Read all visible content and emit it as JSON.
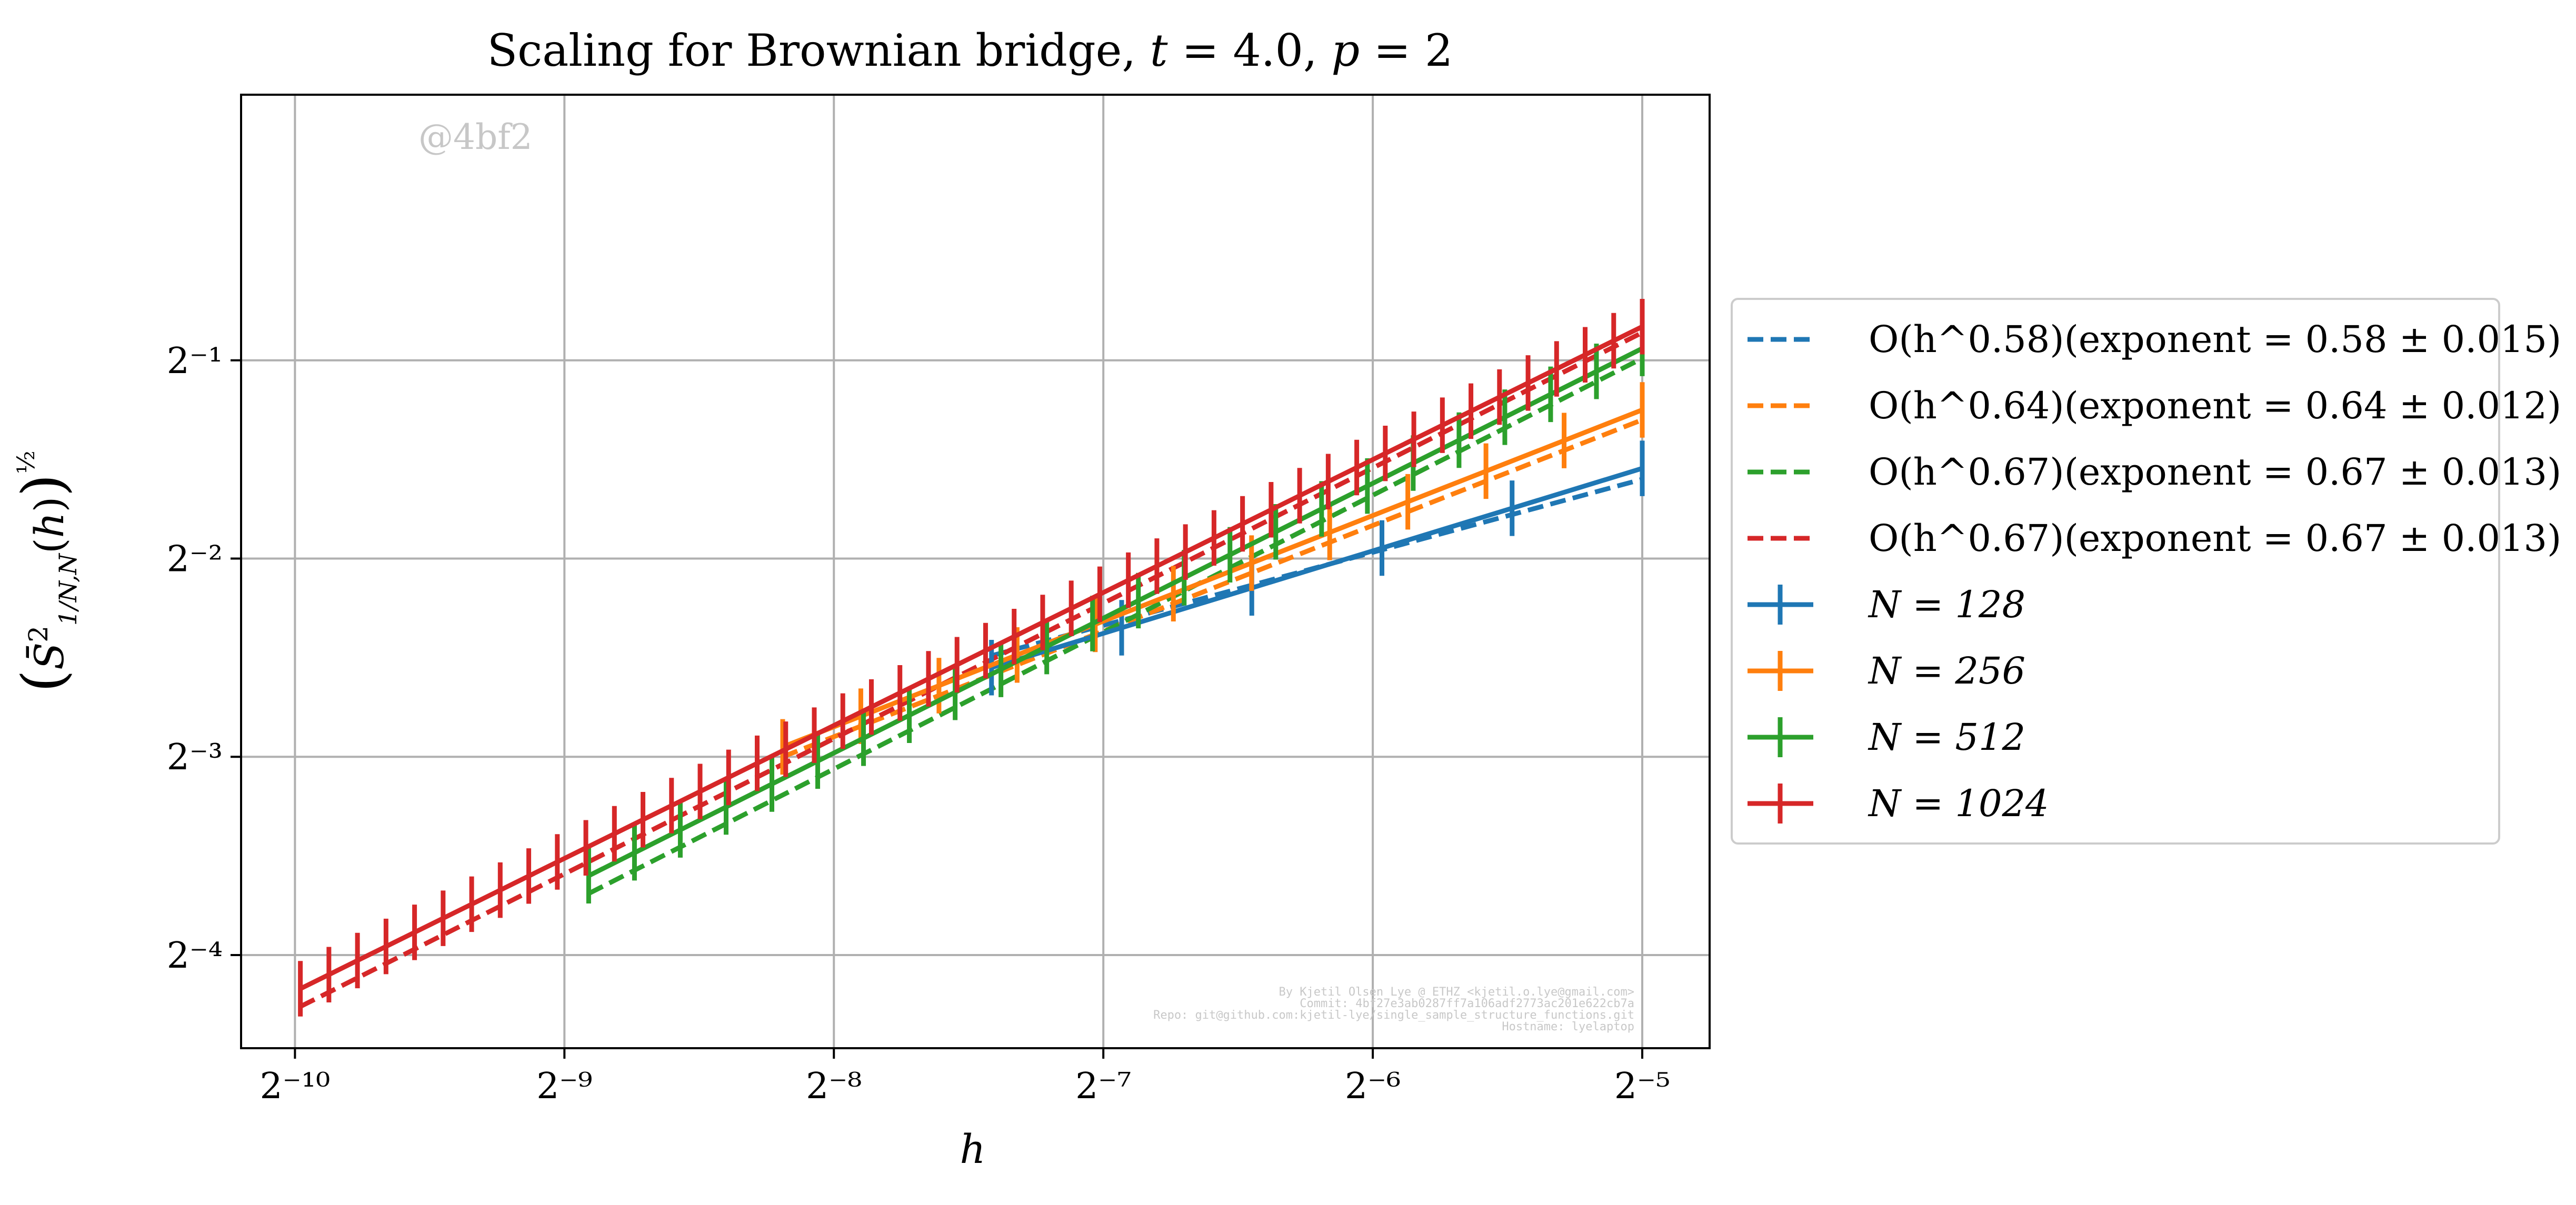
{
  "chart_data": {
    "type": "line",
    "title": "Scaling for Brownian bridge, t = 4.0, p = 2",
    "xlabel": "h",
    "ylabel": "(S̄²₁/N,N(h))^½",
    "x_scale": "log2",
    "y_scale": "log2",
    "x_exp_range": [
      -10.2,
      -4.75
    ],
    "y_exp_range": [
      -4.47,
      0.34
    ],
    "x_ticks": [
      "2⁻¹⁰",
      "2⁻⁹",
      "2⁻⁸",
      "2⁻⁷",
      "2⁻⁶",
      "2⁻⁵"
    ],
    "x_tick_exps": [
      -10,
      -9,
      -8,
      -7,
      -6,
      -5
    ],
    "y_ticks": [
      "2⁻⁴",
      "2⁻³",
      "2⁻²",
      "2⁻¹"
    ],
    "y_tick_exps": [
      -4,
      -3,
      -2,
      -1
    ],
    "grid": true,
    "legend_position": "outside-right",
    "watermark": "@4bf2",
    "footer_lines": [
      "By Kjetil Olsen Lye @ ETHZ <kjetil.o.lye@gmail.com>",
      "Commit: 4bf27e3ab0287ff7a106adf2773ac201e622cb7a",
      "Repo: git@github.com:kjetil-lye/single_sample_structure_functions.git",
      "Hostname: lyelaptop"
    ],
    "series": [
      {
        "name": "N = 128",
        "color": "#1f77b4",
        "n_points": 6,
        "x_exp": [
          -7.415,
          -5
        ],
        "y_exp": [
          -2.55,
          -1.545
        ],
        "err_exp": 0.14,
        "fit_legend": "O(h^0.58)(exponent = 0.58 ± 0.015)",
        "fit_exponent": 0.58,
        "fit_y_exp": [
          -2.49,
          -1.6
        ]
      },
      {
        "name": "N = 256",
        "color": "#ff7f0e",
        "n_points": 12,
        "x_exp": [
          -8.19,
          -5
        ],
        "y_exp": [
          -2.95,
          -1.25
        ],
        "err_exp": 0.14,
        "fit_legend": "O(h^0.64)(exponent = 0.64 ± 0.012)",
        "fit_exponent": 0.64,
        "fit_y_exp": [
          -3.0,
          -1.3
        ]
      },
      {
        "name": "N = 512",
        "color": "#2ca02c",
        "n_points": 24,
        "x_exp": [
          -8.91,
          -5
        ],
        "y_exp": [
          -3.6,
          -0.94
        ],
        "err_exp": 0.14,
        "fit_legend": "O(h^0.67)(exponent = 0.67 ± 0.013)",
        "fit_exponent": 0.67,
        "fit_y_exp": [
          -3.69,
          -0.99
        ]
      },
      {
        "name": "N = 1024",
        "color": "#d62728",
        "n_points": 48,
        "x_exp": [
          -9.98,
          -5
        ],
        "y_exp": [
          -4.17,
          -0.83
        ],
        "err_exp": 0.14,
        "fit_legend": "O(h^0.67)(exponent = 0.67 ± 0.013)",
        "fit_exponent": 0.67,
        "fit_y_exp": [
          -4.26,
          -0.86
        ]
      }
    ]
  }
}
